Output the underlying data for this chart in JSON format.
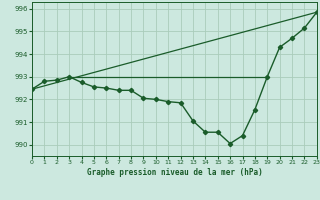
{
  "title": "Graphe pression niveau de la mer (hPa)",
  "background_color": "#cce8df",
  "grid_color": "#aaccbb",
  "line_color": "#1a5c2a",
  "x_min": 0,
  "x_max": 23,
  "y_min": 989.5,
  "y_max": 996.3,
  "y_ticks": [
    990,
    991,
    992,
    993,
    994,
    995,
    996
  ],
  "x_ticks": [
    0,
    1,
    2,
    3,
    4,
    5,
    6,
    7,
    8,
    9,
    10,
    11,
    12,
    13,
    14,
    15,
    16,
    17,
    18,
    19,
    20,
    21,
    22,
    23
  ],
  "main_line": [
    [
      0,
      992.45
    ],
    [
      1,
      992.8
    ],
    [
      2,
      992.85
    ],
    [
      3,
      993.0
    ],
    [
      4,
      992.75
    ],
    [
      5,
      992.55
    ],
    [
      6,
      992.5
    ],
    [
      7,
      992.4
    ],
    [
      8,
      992.4
    ],
    [
      9,
      992.05
    ],
    [
      10,
      992.0
    ],
    [
      11,
      991.9
    ],
    [
      12,
      991.85
    ],
    [
      13,
      991.05
    ],
    [
      14,
      990.55
    ],
    [
      15,
      990.55
    ],
    [
      16,
      990.05
    ],
    [
      17,
      990.4
    ],
    [
      18,
      991.55
    ],
    [
      19,
      993.0
    ],
    [
      20,
      994.3
    ],
    [
      21,
      994.7
    ],
    [
      22,
      995.15
    ],
    [
      23,
      995.85
    ]
  ],
  "straight_line": [
    [
      0,
      992.45
    ],
    [
      23,
      995.85
    ]
  ],
  "hline_y": 993.0,
  "hline_x_start": 3,
  "hline_x_end": 19
}
